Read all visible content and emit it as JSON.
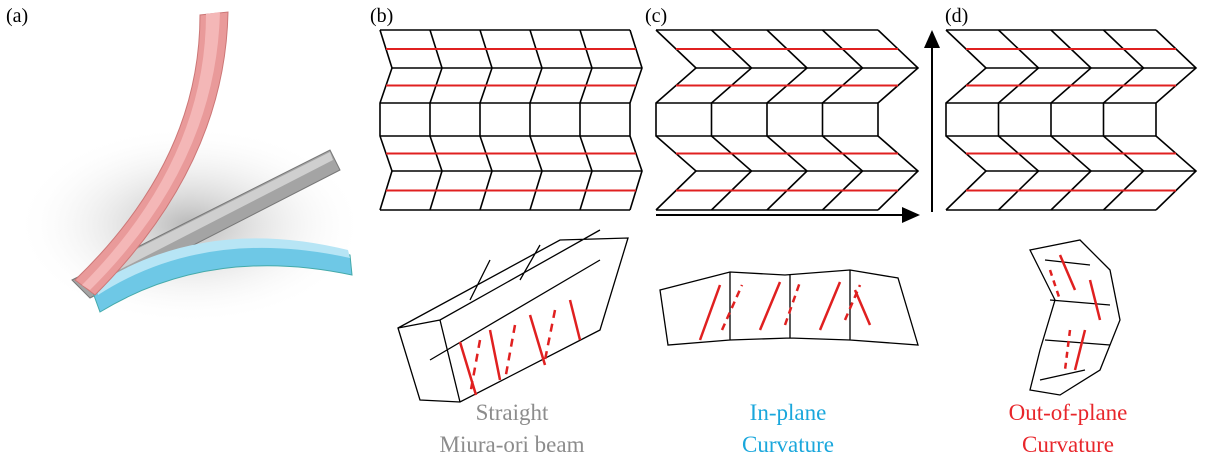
{
  "panels": [
    {
      "label": "(a)"
    },
    {
      "label": "(b)",
      "caption": [
        "Straight",
        "Miura-ori beam"
      ]
    },
    {
      "label": "(c)",
      "caption": [
        "In-plane",
        "Curvature"
      ]
    },
    {
      "label": "(d)",
      "caption": [
        "Out-of-plane",
        "Curvature"
      ]
    }
  ]
}
